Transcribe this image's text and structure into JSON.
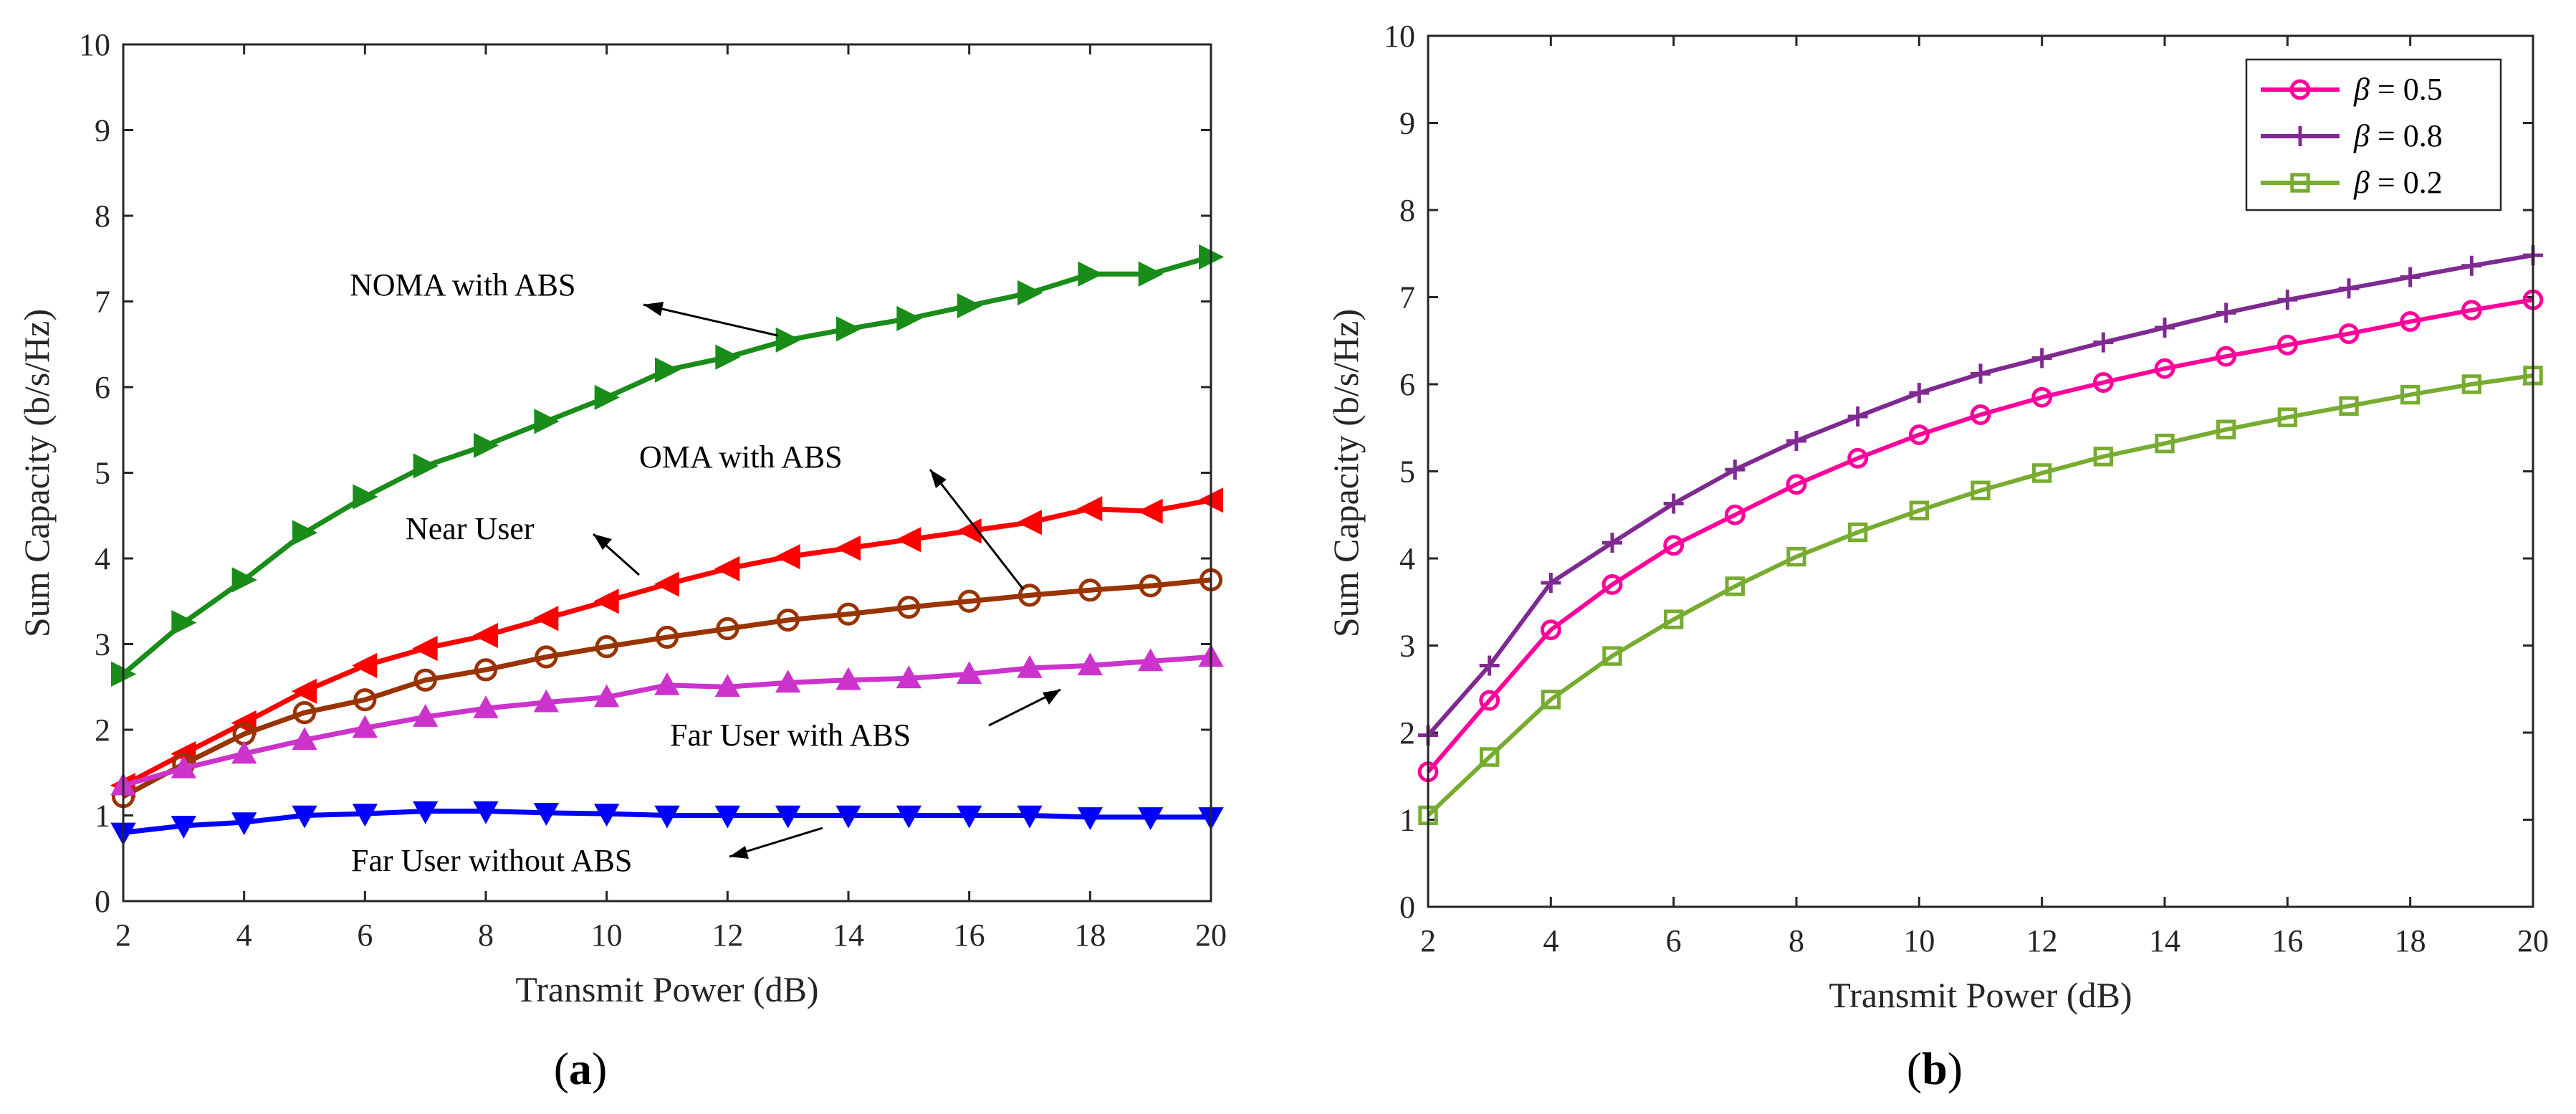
{
  "chart_data": [
    {
      "type": "line",
      "panel": "a",
      "panel_label": "a",
      "xlabel": "Transmit Power (dB)",
      "ylabel": "Sum Capacity (b/s/Hz)",
      "xlim": [
        2,
        20
      ],
      "ylim": [
        0,
        10
      ],
      "xticks": [
        2,
        4,
        6,
        8,
        10,
        12,
        14,
        16,
        18,
        20
      ],
      "yticks": [
        0,
        1,
        2,
        3,
        4,
        5,
        6,
        7,
        8,
        9,
        10
      ],
      "grid": false,
      "x": [
        2,
        3,
        4,
        5,
        6,
        7,
        8,
        9,
        10,
        11,
        12,
        13,
        14,
        15,
        16,
        17,
        18,
        19,
        20
      ],
      "series": [
        {
          "name": "NOMA with ABS",
          "color": "#1a8c1a",
          "marker": "triangle-right",
          "values": [
            2.65,
            3.25,
            3.75,
            4.3,
            4.72,
            5.08,
            5.32,
            5.6,
            5.88,
            6.2,
            6.35,
            6.55,
            6.68,
            6.8,
            6.95,
            7.1,
            7.32,
            7.32,
            7.52
          ]
        },
        {
          "name": "Near User",
          "color": "#ff0000",
          "marker": "triangle-left",
          "values": [
            1.35,
            1.72,
            2.08,
            2.45,
            2.75,
            2.95,
            3.1,
            3.3,
            3.5,
            3.7,
            3.88,
            4.02,
            4.12,
            4.22,
            4.32,
            4.42,
            4.58,
            4.55,
            4.68
          ]
        },
        {
          "name": "OMA with ABS",
          "color": "#993300",
          "marker": "circle",
          "values": [
            1.22,
            1.6,
            1.95,
            2.2,
            2.35,
            2.58,
            2.7,
            2.85,
            2.97,
            3.08,
            3.18,
            3.28,
            3.35,
            3.43,
            3.5,
            3.57,
            3.63,
            3.68,
            3.75
          ]
        },
        {
          "name": "Far User with ABS",
          "color": "#cc33cc",
          "marker": "triangle-up",
          "values": [
            1.35,
            1.55,
            1.72,
            1.88,
            2.02,
            2.15,
            2.25,
            2.32,
            2.38,
            2.52,
            2.5,
            2.55,
            2.58,
            2.6,
            2.65,
            2.72,
            2.75,
            2.8,
            2.85
          ]
        },
        {
          "name": "Far User without ABS",
          "color": "#0000ff",
          "marker": "triangle-down",
          "values": [
            0.8,
            0.88,
            0.92,
            1.0,
            1.02,
            1.05,
            1.05,
            1.03,
            1.02,
            1.0,
            1.0,
            1.0,
            1.0,
            1.0,
            1.0,
            1.0,
            0.98,
            0.98,
            0.98
          ]
        }
      ],
      "annotations": [
        {
          "text": "NOMA with ABS",
          "target_series": "NOMA with ABS"
        },
        {
          "text": "OMA with ABS",
          "target_series": "OMA with ABS"
        },
        {
          "text": "Near User",
          "target_series": "Near User"
        },
        {
          "text": "Far User with ABS",
          "target_series": "Far User with ABS"
        },
        {
          "text": "Far User without ABS",
          "target_series": "Far User without ABS"
        }
      ]
    },
    {
      "type": "line",
      "panel": "b",
      "panel_label": "b",
      "xlabel": "Transmit Power (dB)",
      "ylabel": "Sum Capacity (b/s/Hz)",
      "xlim": [
        2,
        20
      ],
      "ylim": [
        0,
        10
      ],
      "xticks": [
        2,
        4,
        6,
        8,
        10,
        12,
        14,
        16,
        18,
        20
      ],
      "yticks": [
        0,
        1,
        2,
        3,
        4,
        5,
        6,
        7,
        8,
        9,
        10
      ],
      "grid": false,
      "legend_position": "top-right",
      "x": [
        2,
        3,
        4,
        5,
        6,
        7,
        8,
        9,
        10,
        11,
        12,
        13,
        14,
        15,
        16,
        17,
        18,
        19,
        20
      ],
      "series": [
        {
          "name": "β = 0.5",
          "symbol": "β",
          "rest": " = 0.5",
          "color": "#ff0099",
          "marker": "circle",
          "values": [
            1.55,
            2.37,
            3.18,
            3.7,
            4.15,
            4.5,
            4.85,
            5.15,
            5.42,
            5.65,
            5.85,
            6.02,
            6.18,
            6.32,
            6.45,
            6.58,
            6.72,
            6.85,
            6.97
          ]
        },
        {
          "name": "β = 0.8",
          "symbol": "β",
          "rest": " = 0.8",
          "color": "#7f2a90",
          "marker": "plus",
          "values": [
            1.97,
            2.77,
            3.72,
            4.18,
            4.63,
            5.02,
            5.35,
            5.63,
            5.9,
            6.12,
            6.3,
            6.48,
            6.65,
            6.82,
            6.97,
            7.1,
            7.23,
            7.36,
            7.48
          ]
        },
        {
          "name": "β = 0.2",
          "symbol": "β",
          "rest": " = 0.2",
          "color": "#77ac30",
          "marker": "square",
          "values": [
            1.05,
            1.72,
            2.38,
            2.88,
            3.3,
            3.68,
            4.02,
            4.3,
            4.55,
            4.78,
            4.98,
            5.17,
            5.32,
            5.48,
            5.62,
            5.75,
            5.88,
            6.0,
            6.1
          ]
        }
      ]
    }
  ]
}
